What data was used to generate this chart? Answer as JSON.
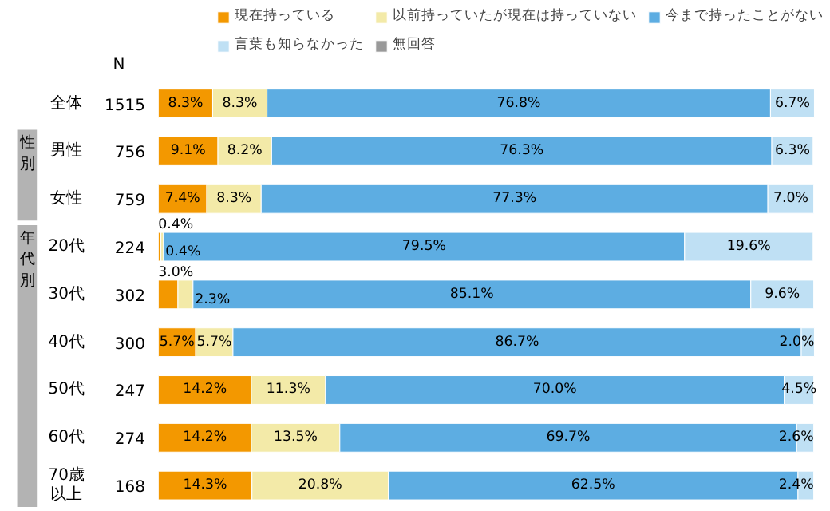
{
  "chart_data": {
    "type": "bar",
    "orientation": "horizontal",
    "stacked": true,
    "legend": "top right",
    "categories": [
      "全体",
      "男性",
      "女性",
      "20代",
      "30代",
      "40代",
      "50代",
      "60代",
      "70歳以上"
    ],
    "annotations": [
      "N",
      "性別",
      "年代別",
      "1515",
      "756",
      "759",
      "224",
      "302",
      "300",
      "247",
      "274",
      "168"
    ],
    "series": [
      {
        "name": "現在持っている",
        "color": "#f39800",
        "values": [
          8.3,
          9.1,
          7.4,
          0.4,
          3.0,
          5.7,
          14.2,
          14.2,
          14.3
        ],
        "value_labels": [
          "8.3%",
          "9.1%",
          "7.4%",
          "0.4%",
          "3.0%",
          "5.7%",
          "14.2%",
          "14.2%",
          "14.3%"
        ]
      },
      {
        "name": "以前持っていたが現在は持っていない",
        "color": "#f3eaa8",
        "values": [
          8.3,
          8.2,
          8.3,
          0.4,
          2.3,
          5.7,
          11.3,
          13.5,
          20.8
        ],
        "value_labels": [
          "8.3%",
          "8.2%",
          "8.3%",
          "0.4%",
          "2.3%",
          "5.7%",
          "11.3%",
          "13.5%",
          "20.8%"
        ]
      },
      {
        "name": "今まで持ったことがない",
        "color": "#5dade2",
        "values": [
          76.8,
          76.3,
          77.3,
          79.5,
          85.1,
          86.7,
          70.0,
          69.7,
          62.5
        ],
        "value_labels": [
          "76.8%",
          "76.3%",
          "77.3%",
          "79.5%",
          "85.1%",
          "86.7%",
          "70.0%",
          "69.7%",
          "62.5%"
        ]
      },
      {
        "name": "言葉も知らなかった",
        "color": "#bfe0f4",
        "values": [
          6.7,
          6.3,
          7.0,
          19.6,
          9.6,
          2.0,
          4.5,
          2.6,
          2.4
        ],
        "value_labels": [
          "6.7%",
          "6.3%",
          "7.0%",
          "19.6%",
          "9.6%",
          "2.0%",
          "4.5%",
          "2.6%",
          "2.4%"
        ]
      },
      {
        "name": "無回答",
        "color": "#999999",
        "values": [
          null,
          null,
          null,
          null,
          null,
          null,
          null,
          null,
          null
        ]
      }
    ]
  }
}
